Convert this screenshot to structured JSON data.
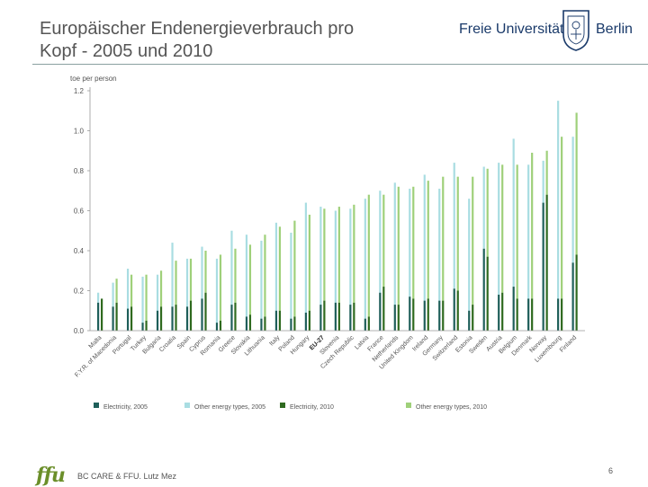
{
  "slide": {
    "title_line1": "Europäischer Endenergieverbrauch pro",
    "title_line2": "Kopf - 2005 und 2010",
    "footer_text": "BC CARE & FFU. Lutz Mez",
    "page_number": "6",
    "footer_logo": "ffu"
  },
  "logo": {
    "name": "Freie Universität",
    "city": "Berlin"
  },
  "colors": {
    "elec2005": "#1f5f5a",
    "other2005": "#a9dde2",
    "elec2010": "#2f6a1f",
    "other2010": "#9fd07a",
    "axis": "#999999",
    "text": "#555555"
  },
  "chart_data": {
    "type": "bar",
    "ylabel": "toe per person",
    "ylim": [
      0,
      1.2
    ],
    "yticks": [
      "0.0",
      "0.2",
      "0.4",
      "0.6",
      "0.8",
      "1.0",
      "1.2"
    ],
    "categories": [
      "Malta",
      "F.Y.R. of Macedonia",
      "Portugal",
      "Turkey",
      "Bulgaria",
      "Croatia",
      "Spain",
      "Cyprus",
      "Romania",
      "Greece",
      "Slovakia",
      "Lithuania",
      "Italy",
      "Poland",
      "Hungary",
      "EU-27",
      "Slovenia",
      "Czech Republic",
      "Latvia",
      "France",
      "Netherlands",
      "United Kingdom",
      "Ireland",
      "Germany",
      "Switzerland",
      "Estonia",
      "Sweden",
      "Austria",
      "Belgium",
      "Denmark",
      "Norway",
      "Luxembourg",
      "Finland"
    ],
    "series": [
      {
        "name": "Electricity, 2005",
        "values": [
          0.14,
          0.12,
          0.11,
          0.04,
          0.1,
          0.12,
          0.12,
          0.16,
          0.04,
          0.13,
          0.07,
          0.06,
          0.1,
          0.06,
          0.09,
          0.13,
          0.14,
          0.13,
          0.06,
          0.19,
          0.13,
          0.17,
          0.15,
          0.15,
          0.21,
          0.1,
          0.41,
          0.18,
          0.22,
          0.16,
          0.64,
          0.16,
          0.34
        ]
      },
      {
        "name": "Other energy types, 2005",
        "values": [
          0.19,
          0.24,
          0.31,
          0.27,
          0.28,
          0.44,
          0.36,
          0.42,
          0.36,
          0.5,
          0.48,
          0.45,
          0.54,
          0.49,
          0.64,
          0.62,
          0.6,
          0.61,
          0.66,
          0.7,
          0.74,
          0.71,
          0.78,
          0.71,
          0.84,
          0.66,
          0.82,
          0.84,
          0.96,
          0.83,
          0.85,
          1.15,
          0.97
        ]
      },
      {
        "name": "Electricity, 2010",
        "values": [
          0.16,
          0.14,
          0.12,
          0.05,
          0.12,
          0.13,
          0.15,
          0.19,
          0.05,
          0.14,
          0.08,
          0.07,
          0.1,
          0.07,
          0.1,
          0.15,
          0.14,
          0.14,
          0.07,
          0.22,
          0.13,
          0.16,
          0.16,
          0.15,
          0.2,
          0.13,
          0.37,
          0.19,
          0.16,
          0.16,
          0.68,
          0.16,
          0.38
        ]
      },
      {
        "name": "Other energy types, 2010",
        "values": [
          0.16,
          0.26,
          0.28,
          0.28,
          0.3,
          0.35,
          0.36,
          0.4,
          0.38,
          0.41,
          0.43,
          0.48,
          0.52,
          0.55,
          0.58,
          0.61,
          0.62,
          0.63,
          0.68,
          0.68,
          0.72,
          0.72,
          0.75,
          0.77,
          0.77,
          0.77,
          0.81,
          0.83,
          0.83,
          0.89,
          0.9,
          0.97,
          1.09
        ]
      }
    ],
    "highlight_category": "EU-27",
    "legend_position": "bottom"
  }
}
